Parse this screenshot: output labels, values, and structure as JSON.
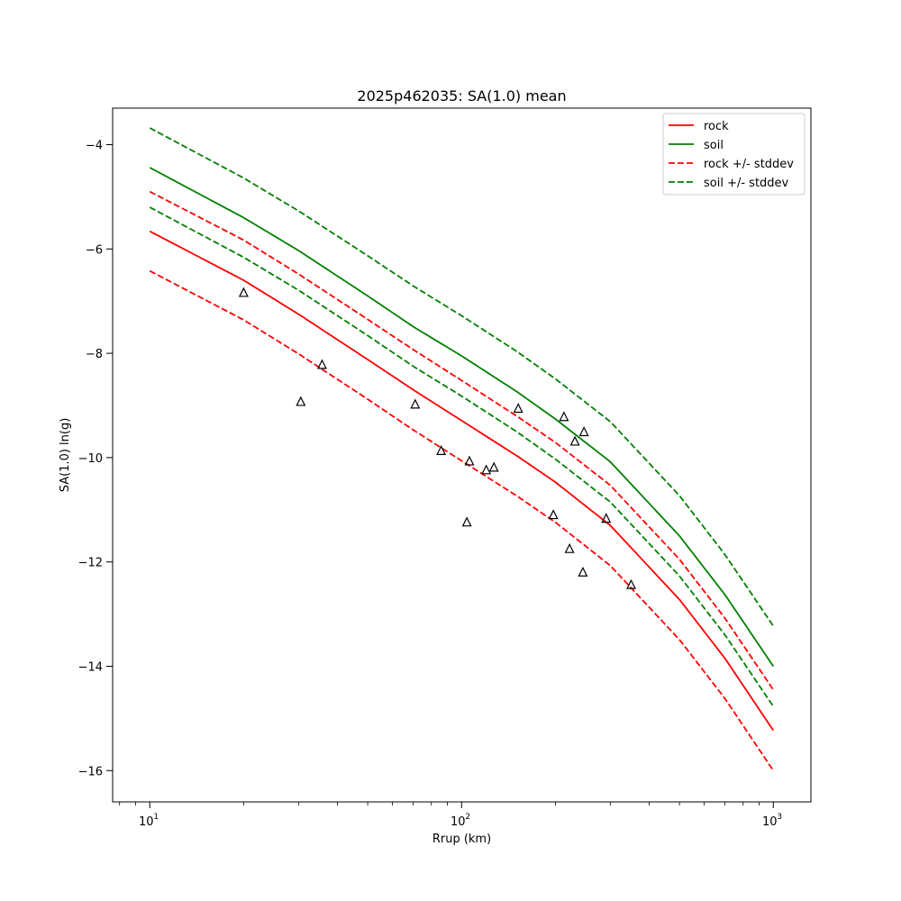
{
  "chart_data": {
    "type": "line",
    "title": "2025p462035: SA(1.0) mean",
    "xlabel": "Rrup (km)",
    "ylabel": "SA(1.0) ln(g)",
    "xscale": "log",
    "xlim": [
      7.6,
      1320
    ],
    "ylim": [
      -16.6,
      -3.3
    ],
    "grid": false,
    "legend_position": "top-right",
    "x_ticks": [
      {
        "value": 10,
        "base": "10",
        "exp": "1"
      },
      {
        "value": 100,
        "base": "10",
        "exp": "2"
      },
      {
        "value": 1000,
        "base": "10",
        "exp": "3"
      }
    ],
    "x_minor_ticks": [
      8,
      9,
      20,
      30,
      40,
      50,
      60,
      70,
      80,
      90,
      200,
      300,
      400,
      500,
      600,
      700,
      800,
      900
    ],
    "y_ticks": [
      {
        "value": -4,
        "label": "−4"
      },
      {
        "value": -6,
        "label": "−6"
      },
      {
        "value": -8,
        "label": "−8"
      },
      {
        "value": -10,
        "label": "−10"
      },
      {
        "value": -12,
        "label": "−12"
      },
      {
        "value": -14,
        "label": "−14"
      },
      {
        "value": -16,
        "label": "−16"
      }
    ],
    "series": [
      {
        "name": "rock",
        "color": "#ff0000",
        "dash": "solid",
        "x": [
          10,
          20,
          30,
          50,
          70,
          100,
          150,
          200,
          300,
          500,
          700,
          1000
        ],
        "y": [
          -5.66,
          -6.6,
          -7.25,
          -8.12,
          -8.7,
          -9.29,
          -9.96,
          -10.47,
          -11.3,
          -12.72,
          -13.85,
          -15.23
        ]
      },
      {
        "name": "soil",
        "color": "#008000",
        "dash": "solid",
        "x": [
          10,
          20,
          30,
          50,
          70,
          100,
          150,
          200,
          300,
          500,
          700,
          1000
        ],
        "y": [
          -4.44,
          -5.4,
          -6.03,
          -6.9,
          -7.49,
          -8.05,
          -8.73,
          -9.26,
          -10.08,
          -11.5,
          -12.63,
          -14.0
        ]
      },
      {
        "name": "rock +/- stddev",
        "color": "#ff0000",
        "dash": "dashed",
        "x": [
          10,
          20,
          30,
          50,
          70,
          100,
          150,
          200,
          300,
          500,
          700,
          1000
        ],
        "y": [
          -4.9,
          -5.83,
          -6.48,
          -7.35,
          -7.93,
          -8.52,
          -9.2,
          -9.71,
          -10.53,
          -11.95,
          -13.08,
          -14.45
        ]
      },
      {
        "name": "",
        "color": "#ff0000",
        "dash": "dashed",
        "x": [
          10,
          20,
          30,
          50,
          70,
          100,
          150,
          200,
          300,
          500,
          700,
          1000
        ],
        "y": [
          -6.42,
          -7.36,
          -8.01,
          -8.88,
          -9.47,
          -10.06,
          -10.73,
          -11.24,
          -12.07,
          -13.49,
          -14.62,
          -16.0
        ]
      },
      {
        "name": "soil +/- stddev",
        "color": "#008000",
        "dash": "dashed",
        "x": [
          10,
          20,
          30,
          50,
          70,
          100,
          150,
          200,
          300,
          500,
          700,
          1000
        ],
        "y": [
          -3.68,
          -4.64,
          -5.27,
          -6.13,
          -6.71,
          -7.28,
          -7.96,
          -8.49,
          -9.31,
          -10.73,
          -11.86,
          -13.23
        ]
      },
      {
        "name": "",
        "color": "#008000",
        "dash": "dashed",
        "x": [
          10,
          20,
          30,
          50,
          70,
          100,
          150,
          200,
          300,
          500,
          700,
          1000
        ],
        "y": [
          -5.2,
          -6.16,
          -6.79,
          -7.66,
          -8.25,
          -8.82,
          -9.5,
          -10.03,
          -10.85,
          -12.27,
          -13.4,
          -14.77
        ]
      }
    ],
    "observations": {
      "marker": "triangle",
      "color": "#000000",
      "x": [
        20,
        30.5,
        35.7,
        71,
        86,
        104,
        106,
        120,
        127,
        152,
        197,
        213,
        222,
        231,
        245,
        247,
        291,
        350
      ],
      "y": [
        -6.84,
        -8.93,
        -8.22,
        -8.98,
        -9.87,
        -11.24,
        -10.07,
        -10.24,
        -10.19,
        -9.06,
        -11.1,
        -9.22,
        -11.75,
        -9.69,
        -12.2,
        -9.51,
        -11.17,
        -12.44
      ]
    }
  }
}
